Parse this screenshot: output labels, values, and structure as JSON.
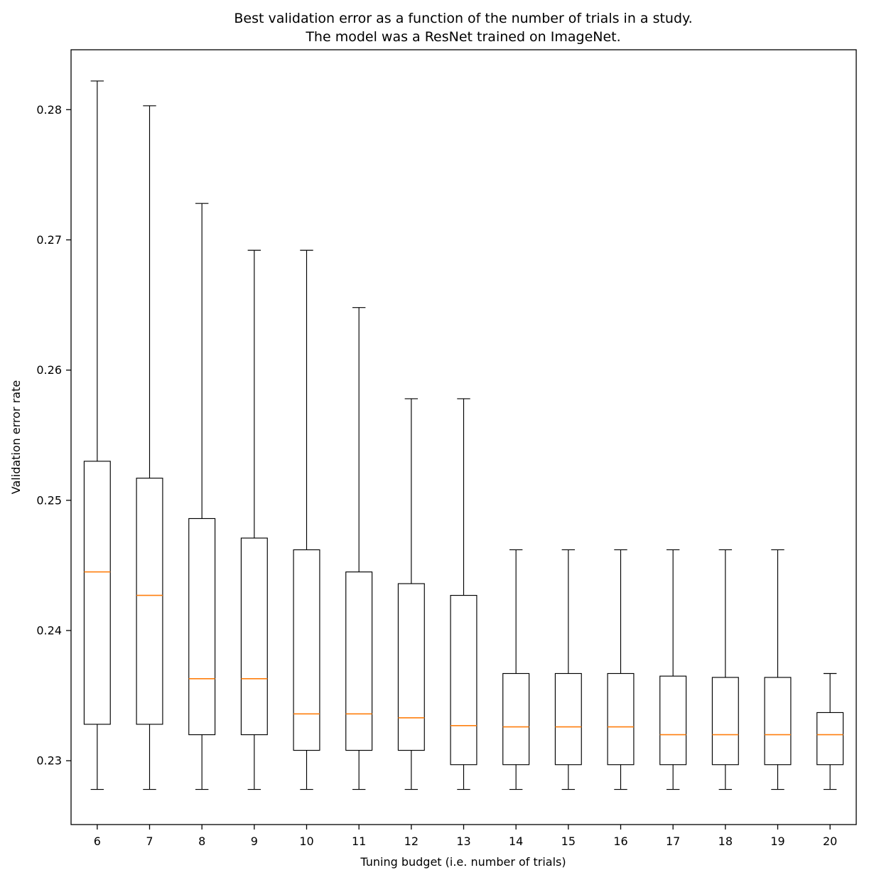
{
  "chart_data": {
    "type": "boxplot",
    "title_line1": "Best validation error as a function of the number of trials in a study.",
    "title_line2": "The model was a ResNet trained on ImageNet.",
    "xlabel": "Tuning budget (i.e. number of trials)",
    "ylabel": "Validation error rate",
    "categories": [
      "6",
      "7",
      "8",
      "9",
      "10",
      "11",
      "12",
      "13",
      "14",
      "15",
      "16",
      "17",
      "18",
      "19",
      "20"
    ],
    "ylim": [
      0.2251,
      0.2846
    ],
    "yticks": [
      {
        "value": 0.23,
        "label": "0.23"
      },
      {
        "value": 0.24,
        "label": "0.24"
      },
      {
        "value": 0.25,
        "label": "0.25"
      },
      {
        "value": 0.26,
        "label": "0.26"
      },
      {
        "value": 0.27,
        "label": "0.27"
      },
      {
        "value": 0.28,
        "label": "0.28"
      }
    ],
    "grid": false,
    "legend": "none",
    "colors": {
      "box": "#000000",
      "whisker": "#000000",
      "median": "#ff7f0e",
      "background": "#ffffff"
    },
    "series": [
      {
        "trial": "6",
        "whisker_low": 0.2278,
        "q1": 0.2328,
        "median": 0.2445,
        "q3": 0.253,
        "whisker_high": 0.2822
      },
      {
        "trial": "7",
        "whisker_low": 0.2278,
        "q1": 0.2328,
        "median": 0.2427,
        "q3": 0.2517,
        "whisker_high": 0.2803
      },
      {
        "trial": "8",
        "whisker_low": 0.2278,
        "q1": 0.232,
        "median": 0.2363,
        "q3": 0.2486,
        "whisker_high": 0.2728
      },
      {
        "trial": "9",
        "whisker_low": 0.2278,
        "q1": 0.232,
        "median": 0.2363,
        "q3": 0.2471,
        "whisker_high": 0.2692
      },
      {
        "trial": "10",
        "whisker_low": 0.2278,
        "q1": 0.2308,
        "median": 0.2336,
        "q3": 0.2462,
        "whisker_high": 0.2692
      },
      {
        "trial": "11",
        "whisker_low": 0.2278,
        "q1": 0.2308,
        "median": 0.2336,
        "q3": 0.2445,
        "whisker_high": 0.2648
      },
      {
        "trial": "12",
        "whisker_low": 0.2278,
        "q1": 0.2308,
        "median": 0.2333,
        "q3": 0.2436,
        "whisker_high": 0.2578
      },
      {
        "trial": "13",
        "whisker_low": 0.2278,
        "q1": 0.2297,
        "median": 0.2327,
        "q3": 0.2427,
        "whisker_high": 0.2578
      },
      {
        "trial": "14",
        "whisker_low": 0.2278,
        "q1": 0.2297,
        "median": 0.2326,
        "q3": 0.2367,
        "whisker_high": 0.2462
      },
      {
        "trial": "15",
        "whisker_low": 0.2278,
        "q1": 0.2297,
        "median": 0.2326,
        "q3": 0.2367,
        "whisker_high": 0.2462
      },
      {
        "trial": "16",
        "whisker_low": 0.2278,
        "q1": 0.2297,
        "median": 0.2326,
        "q3": 0.2367,
        "whisker_high": 0.2462
      },
      {
        "trial": "17",
        "whisker_low": 0.2278,
        "q1": 0.2297,
        "median": 0.232,
        "q3": 0.2365,
        "whisker_high": 0.2462
      },
      {
        "trial": "18",
        "whisker_low": 0.2278,
        "q1": 0.2297,
        "median": 0.232,
        "q3": 0.2364,
        "whisker_high": 0.2462
      },
      {
        "trial": "19",
        "whisker_low": 0.2278,
        "q1": 0.2297,
        "median": 0.232,
        "q3": 0.2364,
        "whisker_high": 0.2462
      },
      {
        "trial": "20",
        "whisker_low": 0.2278,
        "q1": 0.2297,
        "median": 0.232,
        "q3": 0.2337,
        "whisker_high": 0.2367
      }
    ]
  }
}
